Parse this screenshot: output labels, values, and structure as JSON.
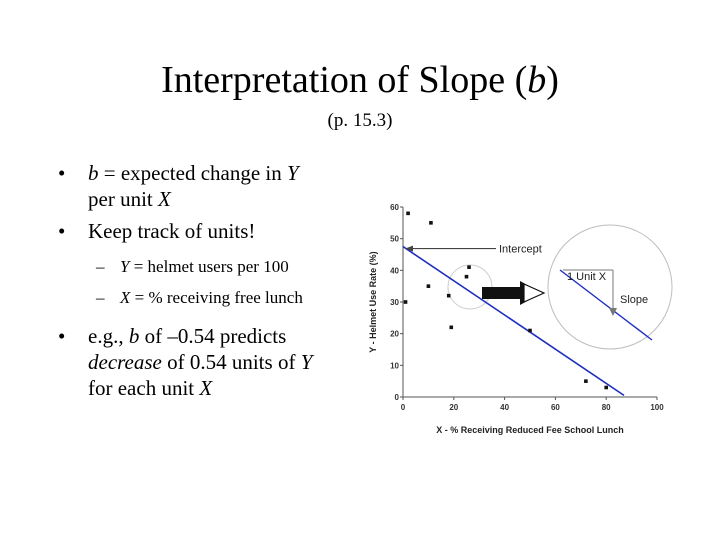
{
  "slide": {
    "title_text": "Interpretation of Slope (",
    "title_var": "b",
    "title_close": ")",
    "subtitle": "(p. 15.3)"
  },
  "bullets": {
    "b1": {
      "var": "b",
      "text": " = expected change in ",
      "y": "Y",
      "line2": "per unit ",
      "x": "X"
    },
    "b2": {
      "text": "Keep track of units!"
    },
    "s1": {
      "var": "Y",
      "text": " = helmet users per 100"
    },
    "s2": {
      "var": "X",
      "text": " = % receiving free lunch"
    },
    "b3": {
      "t1": "e.g., ",
      "var": "b",
      "t2": " of  –0.54 predicts",
      "em": "decrease",
      "t3": " of 0.54 units of ",
      "y": "Y",
      "t4": "for each unit ",
      "x": "X"
    },
    "bullet_glyph": "•",
    "dash_glyph": "–"
  },
  "chart_data": {
    "type": "scatter",
    "xlabel": "X - % Receiving Reduced Fee School Lunch",
    "ylabel": "Y - Helmet Use Rate (%)",
    "xlim": [
      0,
      100
    ],
    "ylim": [
      0,
      60
    ],
    "x_ticks": [
      "0",
      "20",
      "40",
      "60",
      "80",
      "100"
    ],
    "y_ticks": [
      "0",
      "10",
      "20",
      "30",
      "40",
      "50",
      "60"
    ],
    "points": [
      [
        2,
        58
      ],
      [
        11,
        55
      ],
      [
        1,
        30
      ],
      [
        10,
        35
      ],
      [
        18,
        32
      ],
      [
        25,
        38
      ],
      [
        26,
        41
      ],
      [
        19,
        22
      ],
      [
        50,
        21
      ],
      [
        72,
        5
      ],
      [
        80,
        3
      ]
    ],
    "regression": {
      "intercept": 47.5,
      "slope": -0.54,
      "x_end": 87
    },
    "annotations": {
      "intercept": "Intercept",
      "unit": "1 Unit X",
      "slope": "Slope"
    },
    "line_color": "#1f2fbf",
    "point_color": "#111111"
  }
}
